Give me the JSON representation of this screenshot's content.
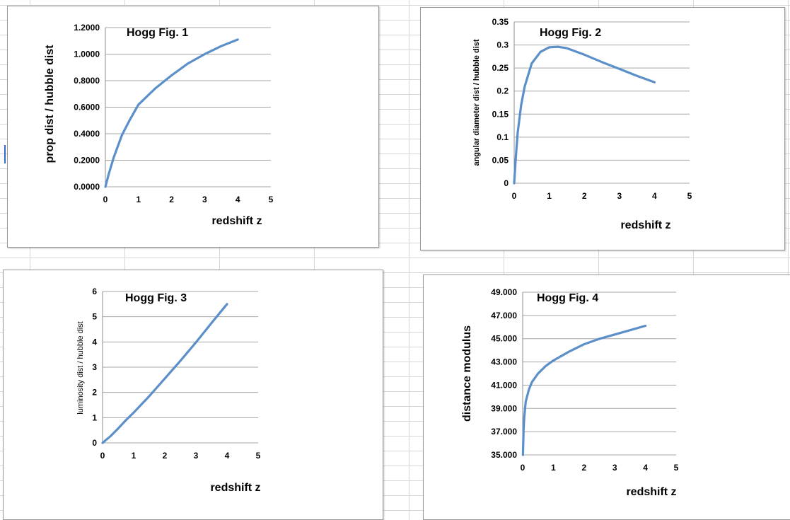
{
  "chart_data": [
    {
      "type": "line",
      "title": "Hogg Fig. 1",
      "xlabel": "redshift z",
      "ylabel": "prop dist / hubble dist",
      "xlim": [
        0,
        5
      ],
      "ylim": [
        0,
        1.2
      ],
      "x_ticks": [
        "0",
        "1",
        "2",
        "3",
        "4",
        "5"
      ],
      "y_ticks": [
        "0.0000",
        "0.2000",
        "0.4000",
        "0.6000",
        "0.8000",
        "1.0000",
        "1.2000"
      ],
      "grid": "horizontal",
      "line_color": "#5b8fc9",
      "series": [
        {
          "x": [
            0,
            0.1,
            0.25,
            0.5,
            0.75,
            1,
            1.5,
            2,
            2.5,
            3,
            3.5,
            4
          ],
          "y": [
            0,
            0.095,
            0.22,
            0.39,
            0.51,
            0.62,
            0.74,
            0.84,
            0.93,
            1.0,
            1.06,
            1.11
          ]
        }
      ]
    },
    {
      "type": "line",
      "title": "Hogg Fig. 2",
      "xlabel": "redshift z",
      "ylabel": "angular diameter dist / hubble dist",
      "xlim": [
        0,
        5
      ],
      "ylim": [
        0,
        0.35
      ],
      "x_ticks": [
        "0",
        "1",
        "2",
        "3",
        "4",
        "5"
      ],
      "y_ticks": [
        "0",
        "0.05",
        "0.1",
        "0.15",
        "0.2",
        "0.25",
        "0.3",
        "0.35"
      ],
      "grid": "horizontal",
      "line_color": "#5b8fc9",
      "series": [
        {
          "x": [
            0,
            0.05,
            0.1,
            0.2,
            0.3,
            0.5,
            0.75,
            1,
            1.25,
            1.5,
            2,
            2.5,
            3,
            3.5,
            4
          ],
          "y": [
            0,
            0.06,
            0.11,
            0.17,
            0.21,
            0.26,
            0.285,
            0.295,
            0.296,
            0.293,
            0.279,
            0.263,
            0.248,
            0.233,
            0.219
          ]
        }
      ]
    },
    {
      "type": "line",
      "title": "Hogg Fig. 3",
      "xlabel": "redshift z",
      "ylabel": "luminosity dist / hubble dist",
      "xlim": [
        0,
        5
      ],
      "ylim": [
        0,
        6
      ],
      "x_ticks": [
        "0",
        "1",
        "2",
        "3",
        "4",
        "5"
      ],
      "y_ticks": [
        "0",
        "1",
        "2",
        "3",
        "4",
        "5",
        "6"
      ],
      "grid": "horizontal",
      "line_color": "#5b8fc9",
      "series": [
        {
          "x": [
            0,
            0.25,
            0.5,
            0.75,
            1,
            1.5,
            2,
            2.5,
            3,
            3.5,
            4
          ],
          "y": [
            0,
            0.26,
            0.57,
            0.9,
            1.2,
            1.85,
            2.55,
            3.25,
            3.98,
            4.75,
            5.5
          ]
        }
      ]
    },
    {
      "type": "line",
      "title": "Hogg Fig. 4",
      "xlabel": "redshift z",
      "ylabel": "distance modulus",
      "xlim": [
        0,
        5
      ],
      "ylim": [
        35,
        50
      ],
      "x_ticks": [
        "0",
        "1",
        "2",
        "3",
        "4",
        "5"
      ],
      "y_ticks": [
        "35.000",
        "37.000",
        "39.000",
        "41.000",
        "43.000",
        "45.000",
        "47.000",
        "49.000"
      ],
      "grid": "horizontal",
      "line_color": "#5b8fc9",
      "series": [
        {
          "x": [
            0.01,
            0.03,
            0.05,
            0.1,
            0.2,
            0.3,
            0.5,
            0.75,
            1,
            1.5,
            2,
            2.5,
            3,
            3.5,
            4
          ],
          "y": [
            35.0,
            37.3,
            38.4,
            39.9,
            41.0,
            41.7,
            42.5,
            43.2,
            43.7,
            44.5,
            45.2,
            45.7,
            46.1,
            46.5,
            46.9
          ]
        }
      ]
    }
  ]
}
